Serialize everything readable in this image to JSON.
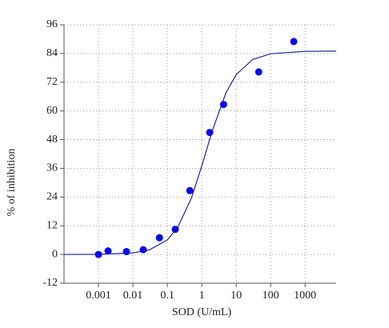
{
  "chart_data": {
    "type": "scatter",
    "x_label": "SOD (U/mL)",
    "y_label": "% of inhibition",
    "log_x": true,
    "grid": true,
    "xlim": [
      0.0001,
      8000
    ],
    "xticks": [
      0.001,
      0.01,
      0.1,
      1,
      10,
      100,
      1000
    ],
    "ylim": [
      -12,
      96
    ],
    "yticks": [
      -12,
      0,
      12,
      24,
      36,
      48,
      60,
      72,
      84,
      96
    ],
    "series": [
      {
        "color": "#0a0ae6",
        "x": [
          0.001,
          0.0019,
          0.0065,
          0.02,
          0.059,
          0.17,
          0.45,
          1.7,
          4.3,
          45,
          470
        ],
        "values": [
          0,
          1.5,
          1.2,
          2,
          7,
          10.5,
          26.7,
          51,
          62.7,
          76.3,
          89
        ]
      }
    ],
    "fit_curve": {
      "color": "#22229a",
      "x": [
        0.0001,
        0.001,
        0.01,
        0.03,
        0.1,
        0.2,
        0.5,
        1,
        2,
        5,
        10,
        30,
        100,
        1000,
        8000
      ],
      "values": [
        0.01,
        0.08,
        0.65,
        1.92,
        6.07,
        11.3,
        23.6,
        37.0,
        51.5,
        67.5,
        75.2,
        81.5,
        83.9,
        84.9,
        85.0
      ]
    }
  }
}
